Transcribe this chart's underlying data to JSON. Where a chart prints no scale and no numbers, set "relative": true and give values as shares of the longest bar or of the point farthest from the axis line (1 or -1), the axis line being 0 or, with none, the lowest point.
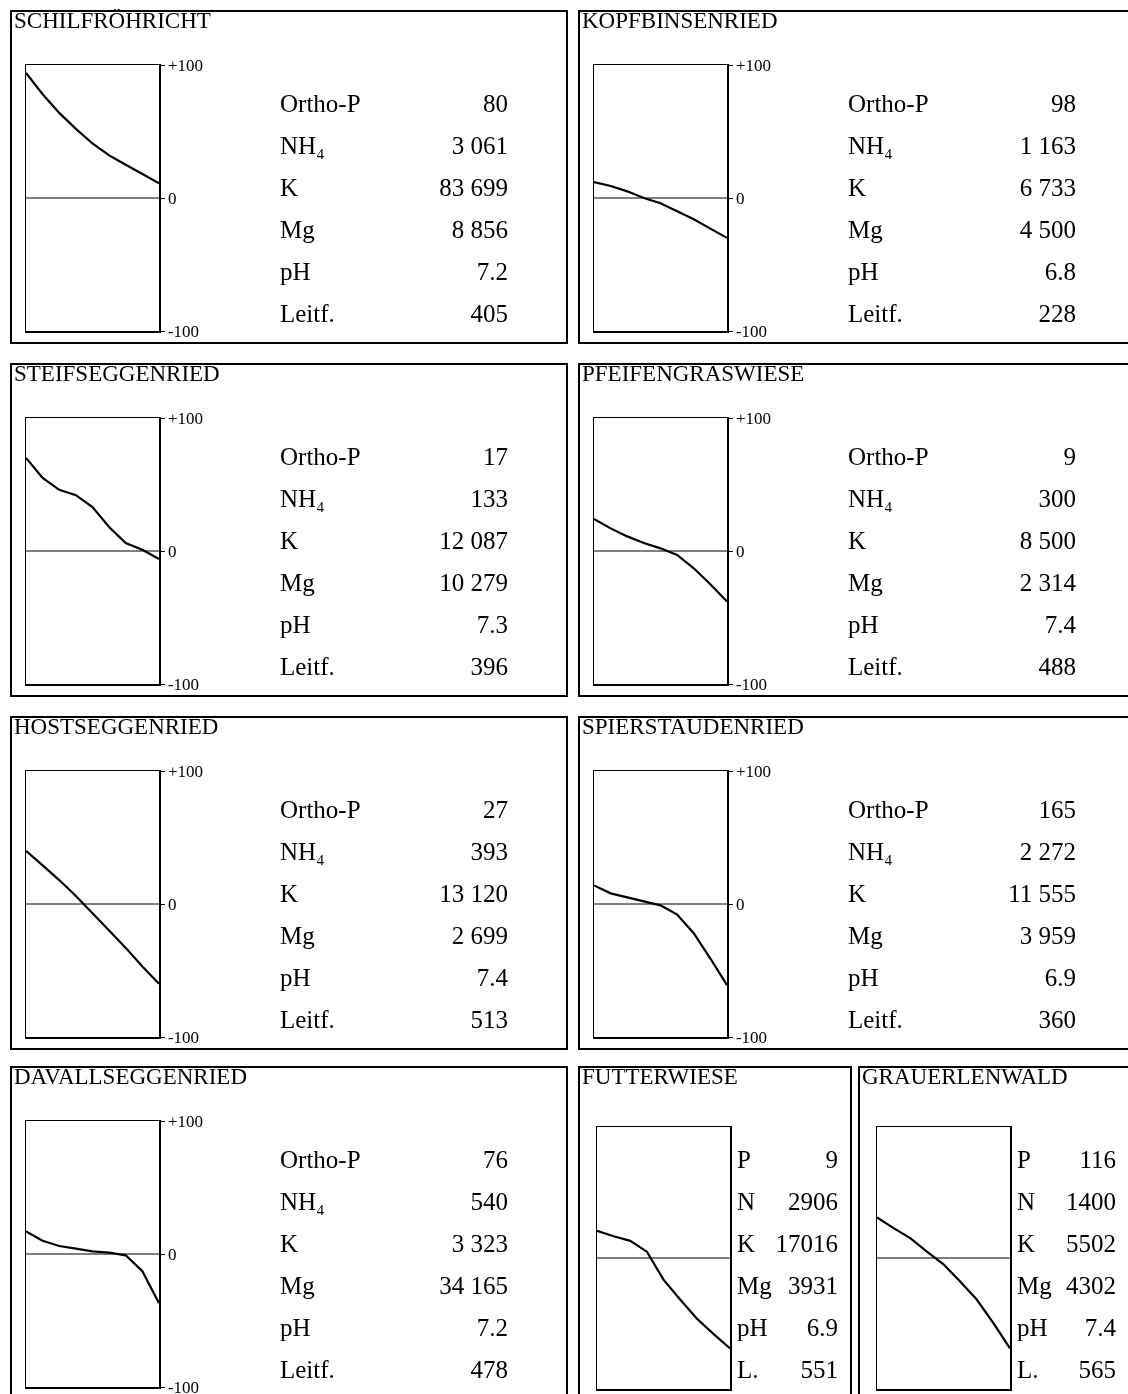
{
  "chart_data": [
    {
      "type": "line",
      "title": "SCHILFRÖHRICHT",
      "categories": [
        null,
        null,
        null,
        null,
        null,
        null,
        null,
        null,
        null
      ],
      "series": [
        {
          "color": "#000000",
          "values": [
            94,
            78,
            64,
            52,
            41,
            32,
            25,
            18,
            11
          ]
        }
      ],
      "ylim": [
        -100,
        100
      ],
      "yticks": [
        {
          "value": 100,
          "label": "+100"
        },
        {
          "value": 0,
          "label": "0"
        },
        {
          "value": -100,
          "label": "-100"
        }
      ],
      "tick_labels": "y",
      "ref_lines": [
        {
          "axis": "y",
          "value": 0
        }
      ],
      "annotations": [
        "Ortho-P 80",
        "NH₄ 3 061",
        "K 83 699",
        "Mg 8 856",
        "pH 7.2",
        "Leitf. 405"
      ]
    },
    {
      "type": "line",
      "title": "KOPFBINSENRIED",
      "categories": [
        null,
        null,
        null,
        null,
        null,
        null,
        null,
        null,
        null
      ],
      "series": [
        {
          "color": "#000000",
          "values": [
            12,
            9,
            5,
            0,
            -4,
            -10,
            -16,
            -23,
            -30
          ]
        }
      ],
      "ylim": [
        -100,
        100
      ],
      "yticks": [
        {
          "value": 100,
          "label": "+100"
        },
        {
          "value": 0,
          "label": "0"
        },
        {
          "value": -100,
          "label": "-100"
        }
      ],
      "tick_labels": "y",
      "ref_lines": [
        {
          "axis": "y",
          "value": 0
        }
      ],
      "annotations": [
        "Ortho-P 98",
        "NH₄ 1 163",
        "K 6 733",
        "Mg 4 500",
        "pH 6.8",
        "Leitf. 228"
      ]
    },
    {
      "type": "line",
      "title": "STEIFSEGGENRIED",
      "categories": [
        null,
        null,
        null,
        null,
        null,
        null,
        null,
        null,
        null
      ],
      "series": [
        {
          "color": "#000000",
          "values": [
            70,
            55,
            46,
            42,
            33,
            18,
            6,
            1,
            -6
          ]
        }
      ],
      "ylim": [
        -100,
        100
      ],
      "yticks": [
        {
          "value": 100,
          "label": "+100"
        },
        {
          "value": 0,
          "label": "0"
        },
        {
          "value": -100,
          "label": "-100"
        }
      ],
      "tick_labels": "y",
      "ref_lines": [
        {
          "axis": "y",
          "value": 0
        }
      ],
      "annotations": [
        "Ortho-P 17",
        "NH₄ 133",
        "K 12 087",
        "Mg 10 279",
        "pH 7.3",
        "Leitf. 396"
      ]
    },
    {
      "type": "line",
      "title": "PFEIFENGRASWIESE",
      "categories": [
        null,
        null,
        null,
        null,
        null,
        null,
        null,
        null,
        null
      ],
      "series": [
        {
          "color": "#000000",
          "values": [
            24,
            17,
            11,
            6,
            2,
            -3,
            -13,
            -25,
            -38
          ]
        }
      ],
      "ylim": [
        -100,
        100
      ],
      "yticks": [
        {
          "value": 100,
          "label": "+100"
        },
        {
          "value": 0,
          "label": "0"
        },
        {
          "value": -100,
          "label": "-100"
        }
      ],
      "tick_labels": "y",
      "ref_lines": [
        {
          "axis": "y",
          "value": 0
        }
      ],
      "annotations": [
        "Ortho-P 9",
        "NH₄ 300",
        "K 8 500",
        "Mg 2 314",
        "pH 7.4",
        "Leitf. 488"
      ]
    },
    {
      "type": "line",
      "title": "HOSTSEGGENRIED",
      "categories": [
        null,
        null,
        null,
        null,
        null,
        null,
        null,
        null,
        null
      ],
      "series": [
        {
          "color": "#000000",
          "values": [
            40,
            29,
            18,
            6,
            -7,
            -20,
            -33,
            -47,
            -60
          ]
        }
      ],
      "ylim": [
        -100,
        100
      ],
      "yticks": [
        {
          "value": 100,
          "label": "+100"
        },
        {
          "value": 0,
          "label": "0"
        },
        {
          "value": -100,
          "label": "-100"
        }
      ],
      "tick_labels": "y",
      "ref_lines": [
        {
          "axis": "y",
          "value": 0
        }
      ],
      "annotations": [
        "Ortho-P 27",
        "NH₄ 393",
        "K 13 120",
        "Mg 2 699",
        "pH 7.4",
        "Leitf. 513"
      ]
    },
    {
      "type": "line",
      "title": "SPIERSTAUDENRIED",
      "categories": [
        null,
        null,
        null,
        null,
        null,
        null,
        null,
        null,
        null
      ],
      "series": [
        {
          "color": "#000000",
          "values": [
            14,
            8,
            5,
            2,
            -1,
            -8,
            -22,
            -41,
            -61
          ]
        }
      ],
      "ylim": [
        -100,
        100
      ],
      "yticks": [
        {
          "value": 100,
          "label": "+100"
        },
        {
          "value": 0,
          "label": "0"
        },
        {
          "value": -100,
          "label": "-100"
        }
      ],
      "tick_labels": "y",
      "ref_lines": [
        {
          "axis": "y",
          "value": 0
        }
      ],
      "annotations": [
        "Ortho-P 165",
        "NH₄ 2 272",
        "K 11 555",
        "Mg 3 959",
        "pH 6.9",
        "Leitf. 360"
      ]
    },
    {
      "type": "line",
      "title": "DAVALLSEGGENRIED",
      "categories": [
        null,
        null,
        null,
        null,
        null,
        null,
        null,
        null,
        null
      ],
      "series": [
        {
          "color": "#000000",
          "values": [
            17,
            10,
            6,
            4,
            2,
            1,
            -1,
            -13,
            -37
          ]
        }
      ],
      "ylim": [
        -100,
        100
      ],
      "yticks": [
        {
          "value": 100,
          "label": "+100"
        },
        {
          "value": 0,
          "label": "0"
        },
        {
          "value": -100,
          "label": "-100"
        }
      ],
      "tick_labels": "y",
      "ref_lines": [
        {
          "axis": "y",
          "value": 0
        }
      ],
      "annotations": [
        "Ortho-P 76",
        "NH₄ 540",
        "K 3 323",
        "Mg 34 165",
        "pH 7.2",
        "Leitf. 478"
      ]
    },
    {
      "type": "line",
      "title": "FUTTERWIESE",
      "categories": [
        null,
        null,
        null,
        null,
        null,
        null,
        null,
        null,
        null
      ],
      "series": [
        {
          "color": "#000000",
          "values": [
            0.3,
            0.24,
            0.19,
            0.07,
            -0.24,
            -0.46,
            -0.67,
            -0.84,
            -1
          ]
        }
      ],
      "relative": true,
      "tick_labels": false,
      "ref_lines": [
        {
          "axis": "y",
          "value": 0
        }
      ],
      "annotations": [
        "P 9",
        "N 2906",
        "K 17016",
        "Mg 3931",
        "pH 6.9",
        "L. 551"
      ]
    },
    {
      "type": "line",
      "title": "GRAUERLENWALD",
      "categories": [
        null,
        null,
        null,
        null,
        null,
        null,
        null,
        null,
        null
      ],
      "series": [
        {
          "color": "#000000",
          "values": [
            0.45,
            0.33,
            0.22,
            0.07,
            -0.07,
            -0.26,
            -0.46,
            -0.72,
            -1
          ]
        }
      ],
      "relative": true,
      "tick_labels": false,
      "ref_lines": [
        {
          "axis": "y",
          "value": 0
        }
      ],
      "annotations": [
        "P 116",
        "N 1400",
        "K 5502",
        "Mg 4302",
        "pH 7.4",
        "L. 565"
      ]
    }
  ]
}
